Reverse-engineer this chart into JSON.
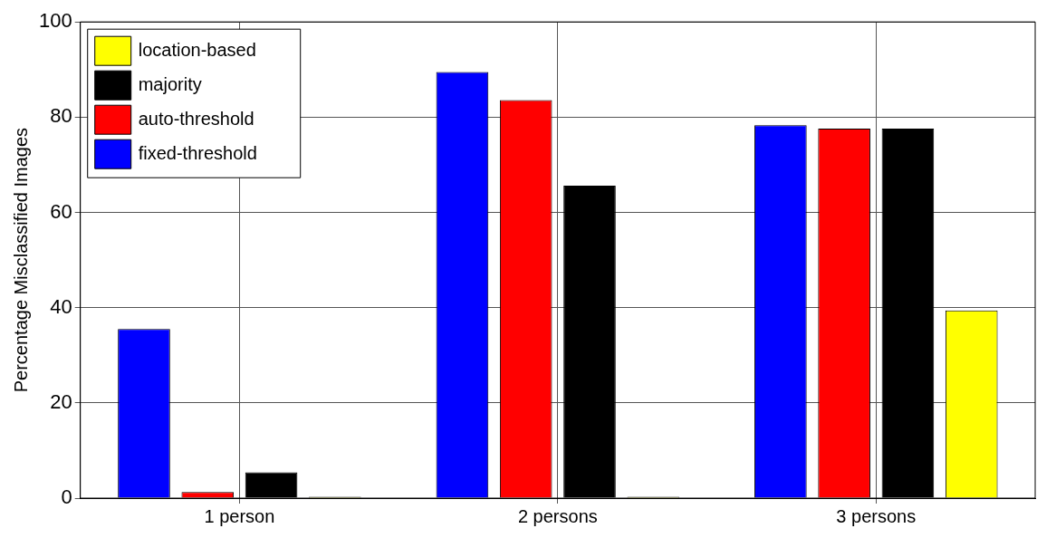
{
  "chart_data": {
    "type": "bar",
    "ylabel": "Percentage Misclassified Images",
    "categories": [
      "1 person",
      "2 persons",
      "3 persons"
    ],
    "series": [
      {
        "name": "fixed-threshold",
        "color": "#0000ff",
        "values": [
          35.5,
          89.5,
          78.3
        ]
      },
      {
        "name": "auto-threshold",
        "color": "#ff0000",
        "values": [
          1.3,
          83.6,
          77.6
        ]
      },
      {
        "name": "majority",
        "color": "#000000",
        "values": [
          5.4,
          65.6,
          77.6
        ]
      },
      {
        "name": "location-based",
        "color": "#ffff00",
        "values": [
          0.3,
          0.3,
          39.4
        ]
      }
    ],
    "ylim": [
      0,
      100
    ],
    "yticks": [
      0,
      20,
      40,
      60,
      80,
      100
    ],
    "grid": true,
    "legend": "top left"
  }
}
